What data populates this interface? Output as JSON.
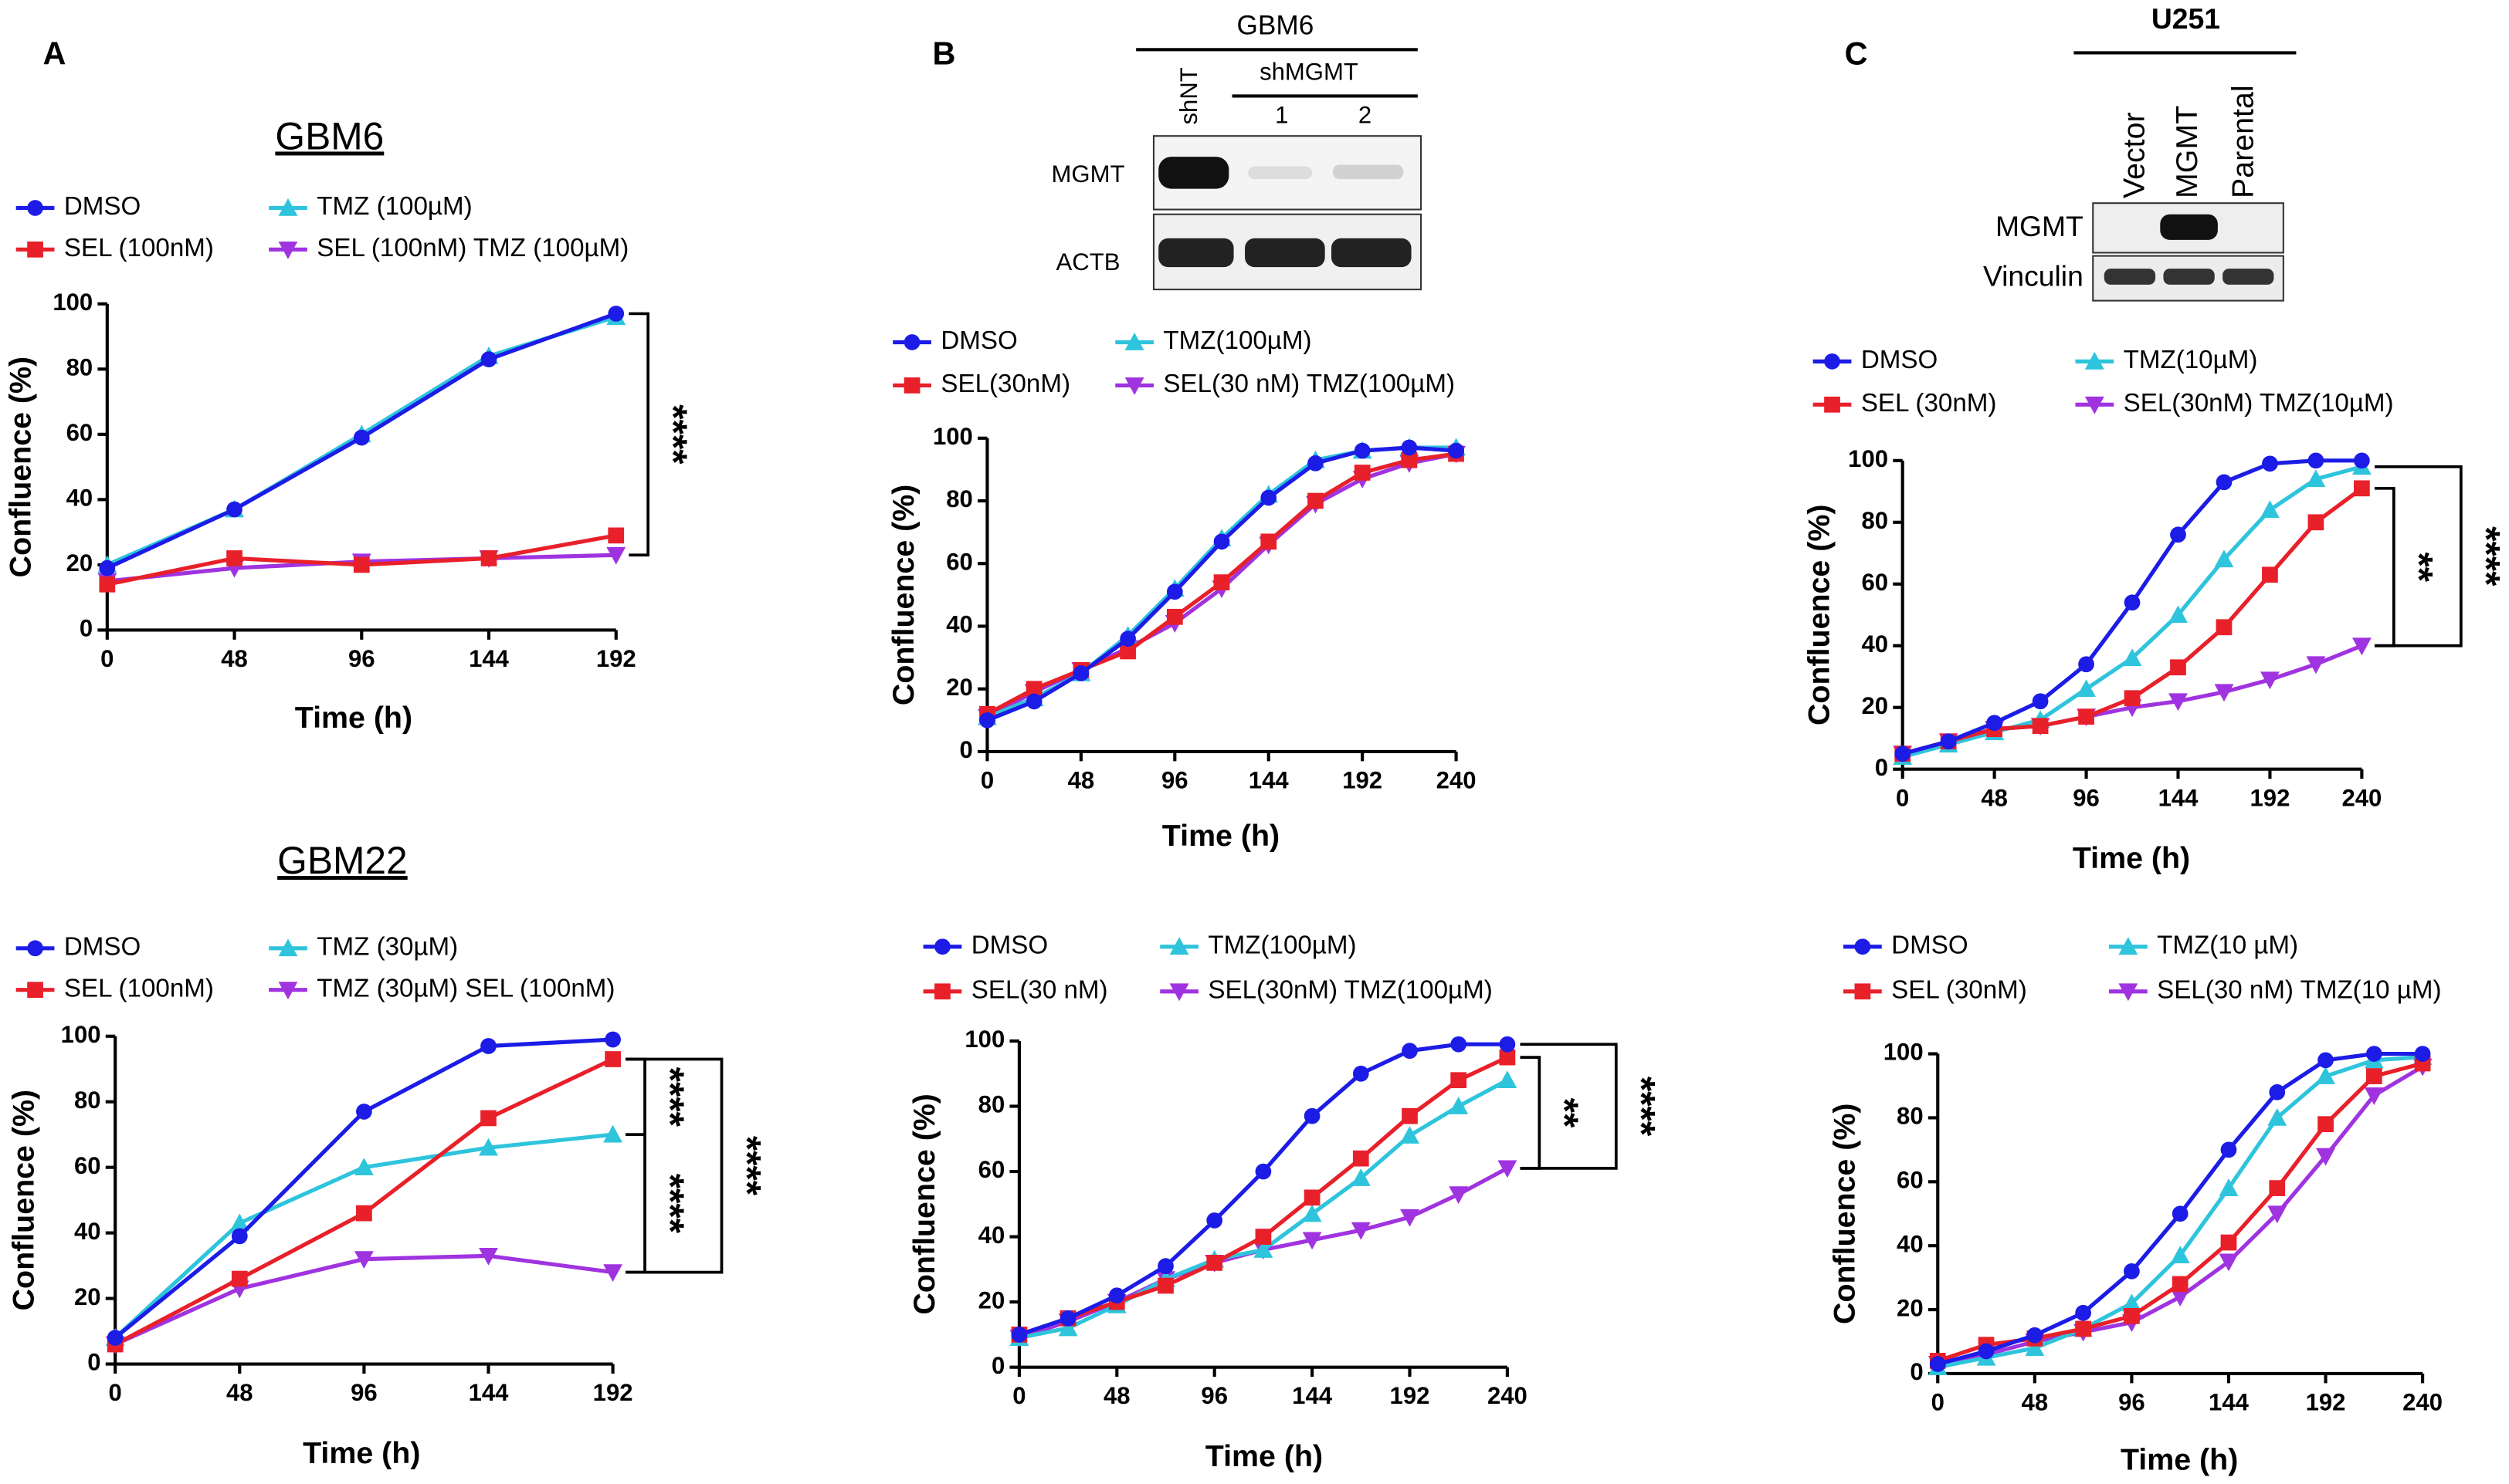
{
  "panels": [
    "A",
    "B",
    "C"
  ],
  "blots": [
    {
      "title": "GBM6",
      "group": "shMGMT",
      "lanes": [
        "shNT",
        "1",
        "2"
      ],
      "rows": [
        "MGMT",
        "ACTB"
      ]
    },
    {
      "title": "U251",
      "lanes": [
        "Vector",
        "MGMT",
        "Parental"
      ],
      "rows": [
        "MGMT",
        "Vinculin"
      ]
    }
  ],
  "chart_data": [
    {
      "type": "line",
      "title": "GBM6",
      "x_label": "Time (h)",
      "y_label": "Confluence (%)",
      "x": [
        0,
        48,
        96,
        144,
        192
      ],
      "xlim": [
        0,
        192
      ],
      "xticks": [
        0,
        48,
        96,
        144,
        192
      ],
      "ylim": [
        0,
        100
      ],
      "yticks": [
        0,
        20,
        40,
        60,
        80,
        100
      ],
      "annotations": [
        "****"
      ],
      "series": [
        {
          "name": "DMSO",
          "color": "#1c1ce6",
          "marker": "circle",
          "values": [
            19,
            37,
            59,
            83,
            97
          ]
        },
        {
          "name": "SEL (100nM)",
          "color": "#e8202a",
          "marker": "square",
          "values": [
            14,
            22,
            20,
            22,
            29
          ]
        },
        {
          "name": "TMZ (100µM)",
          "color": "#2ec4dc",
          "marker": "triangle-up",
          "values": [
            20,
            37,
            60,
            84,
            96
          ]
        },
        {
          "name": "SEL (100nM) TMZ (100µM)",
          "color": "#a033e0",
          "marker": "triangle-down",
          "values": [
            15,
            19,
            21,
            22,
            23
          ]
        }
      ]
    },
    {
      "type": "line",
      "title": "GBM22",
      "x_label": "Time (h)",
      "y_label": "Confluence (%)",
      "x": [
        0,
        48,
        96,
        144,
        192
      ],
      "xlim": [
        0,
        192
      ],
      "xticks": [
        0,
        48,
        96,
        144,
        192
      ],
      "ylim": [
        0,
        100
      ],
      "yticks": [
        0,
        20,
        40,
        60,
        80,
        100
      ],
      "annotations": [
        "****",
        "****",
        "****"
      ],
      "series": [
        {
          "name": "DMSO",
          "color": "#1c1ce6",
          "marker": "circle",
          "values": [
            8,
            39,
            77,
            97,
            99
          ]
        },
        {
          "name": "SEL (100nM)",
          "color": "#e8202a",
          "marker": "square",
          "values": [
            6,
            26,
            46,
            75,
            93
          ]
        },
        {
          "name": "TMZ (30µM)",
          "color": "#2ec4dc",
          "marker": "triangle-up",
          "values": [
            8,
            43,
            60,
            66,
            70
          ]
        },
        {
          "name": "TMZ (30µM) SEL (100nM)",
          "color": "#a033e0",
          "marker": "triangle-down",
          "values": [
            6,
            23,
            32,
            33,
            28
          ]
        }
      ]
    },
    {
      "type": "line",
      "x_label": "Time (h)",
      "y_label": "Confluence (%)",
      "x": [
        0,
        24,
        48,
        72,
        96,
        120,
        144,
        168,
        192,
        216,
        240
      ],
      "xlim": [
        0,
        240
      ],
      "xticks": [
        0,
        48,
        96,
        144,
        192,
        240
      ],
      "ylim": [
        0,
        100
      ],
      "yticks": [
        0,
        20,
        40,
        60,
        80,
        100
      ],
      "series": [
        {
          "name": "DMSO",
          "color": "#1c1ce6",
          "marker": "circle",
          "values": [
            10,
            16,
            25,
            36,
            51,
            67,
            81,
            92,
            96,
            97,
            96
          ]
        },
        {
          "name": "SEL(30nM)",
          "color": "#e8202a",
          "marker": "square",
          "values": [
            12,
            20,
            26,
            32,
            43,
            54,
            67,
            80,
            89,
            93,
            95
          ]
        },
        {
          "name": "TMZ(100µM)",
          "color": "#2ec4dc",
          "marker": "triangle-up",
          "values": [
            11,
            17,
            25,
            37,
            52,
            68,
            82,
            93,
            96,
            97,
            97
          ]
        },
        {
          "name": "SEL(30 nM) TMZ(100µM)",
          "color": "#a033e0",
          "marker": "triangle-down",
          "values": [
            11,
            19,
            26,
            33,
            41,
            52,
            66,
            79,
            87,
            92,
            95
          ]
        }
      ]
    },
    {
      "type": "line",
      "x_label": "Time (h)",
      "y_label": "Confluence (%)",
      "x": [
        0,
        24,
        48,
        72,
        96,
        120,
        144,
        168,
        192,
        216,
        240
      ],
      "xlim": [
        0,
        240
      ],
      "xticks": [
        0,
        48,
        96,
        144,
        192,
        240
      ],
      "ylim": [
        0,
        100
      ],
      "yticks": [
        0,
        20,
        40,
        60,
        80,
        100
      ],
      "annotations": [
        "**",
        "****"
      ],
      "series": [
        {
          "name": "DMSO",
          "color": "#1c1ce6",
          "marker": "circle",
          "values": [
            10,
            15,
            22,
            31,
            45,
            60,
            77,
            90,
            97,
            99,
            99
          ]
        },
        {
          "name": "SEL(30 nM)",
          "color": "#e8202a",
          "marker": "square",
          "values": [
            10,
            15,
            20,
            25,
            32,
            40,
            52,
            64,
            77,
            88,
            95
          ]
        },
        {
          "name": "TMZ(100µM)",
          "color": "#2ec4dc",
          "marker": "triangle-up",
          "values": [
            9,
            12,
            19,
            27,
            33,
            36,
            47,
            58,
            71,
            80,
            88
          ]
        },
        {
          "name": "SEL(30nM) TMZ(100µM)",
          "color": "#a033e0",
          "marker": "triangle-down",
          "values": [
            9,
            14,
            20,
            27,
            32,
            36,
            39,
            42,
            46,
            53,
            61
          ]
        }
      ]
    },
    {
      "type": "line",
      "x_label": "Time (h)",
      "y_label": "Confluence (%)",
      "x": [
        0,
        24,
        48,
        72,
        96,
        120,
        144,
        168,
        192,
        216,
        240
      ],
      "xlim": [
        0,
        240
      ],
      "xticks": [
        0,
        48,
        96,
        144,
        192,
        240
      ],
      "ylim": [
        0,
        100
      ],
      "yticks": [
        0,
        20,
        40,
        60,
        80,
        100
      ],
      "annotations": [
        "**",
        "****"
      ],
      "series": [
        {
          "name": "DMSO",
          "color": "#1c1ce6",
          "marker": "circle",
          "values": [
            5,
            9,
            15,
            22,
            34,
            54,
            76,
            93,
            99,
            100,
            100
          ]
        },
        {
          "name": "SEL (30nM)",
          "color": "#e8202a",
          "marker": "square",
          "values": [
            5,
            9,
            13,
            14,
            17,
            23,
            33,
            46,
            63,
            80,
            91
          ]
        },
        {
          "name": "TMZ(10µM)",
          "color": "#2ec4dc",
          "marker": "triangle-up",
          "values": [
            4,
            8,
            12,
            16,
            26,
            36,
            50,
            68,
            84,
            94,
            98
          ]
        },
        {
          "name": "SEL(30nM) TMZ(10µM)",
          "color": "#a033e0",
          "marker": "triangle-down",
          "values": [
            5,
            9,
            13,
            14,
            17,
            20,
            22,
            25,
            29,
            34,
            40
          ]
        }
      ]
    },
    {
      "type": "line",
      "x_label": "Time (h)",
      "y_label": "Confluence (%)",
      "x": [
        0,
        24,
        48,
        72,
        96,
        120,
        144,
        168,
        192,
        216,
        240
      ],
      "xlim": [
        0,
        240
      ],
      "xticks": [
        0,
        48,
        96,
        144,
        192,
        240
      ],
      "ylim": [
        0,
        100
      ],
      "yticks": [
        0,
        20,
        40,
        60,
        80,
        100
      ],
      "series": [
        {
          "name": "DMSO",
          "color": "#1c1ce6",
          "marker": "circle",
          "values": [
            3,
            7,
            12,
            19,
            32,
            50,
            70,
            88,
            98,
            100,
            100
          ]
        },
        {
          "name": "SEL (30nM)",
          "color": "#e8202a",
          "marker": "square",
          "values": [
            4,
            9,
            11,
            14,
            18,
            28,
            41,
            58,
            78,
            93,
            97
          ]
        },
        {
          "name": "TMZ(10 µM)",
          "color": "#2ec4dc",
          "marker": "triangle-up",
          "values": [
            2,
            5,
            8,
            14,
            22,
            37,
            58,
            80,
            93,
            98,
            99
          ]
        },
        {
          "name": "SEL(30 nM) TMZ(10 µM)",
          "color": "#a033e0",
          "marker": "triangle-down",
          "values": [
            3,
            6,
            10,
            13,
            16,
            24,
            35,
            50,
            68,
            87,
            96
          ]
        }
      ]
    }
  ]
}
